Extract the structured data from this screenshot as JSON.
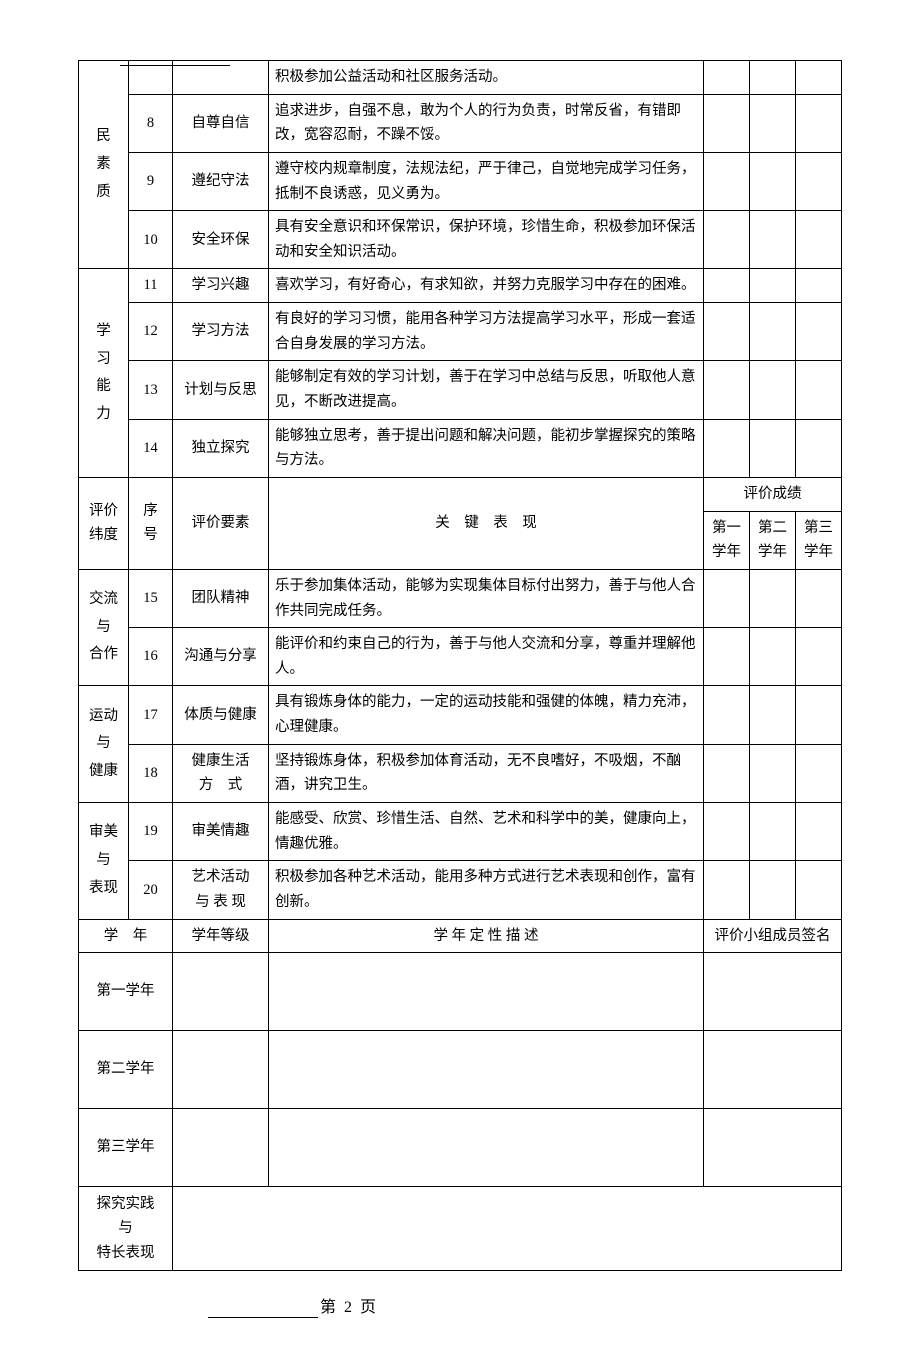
{
  "sections": {
    "s1": {
      "label": "民\n素\n质"
    },
    "s2": {
      "label": "学\n习\n能\n力"
    },
    "s3": {
      "label": "交流\n与\n合作"
    },
    "s4": {
      "label": "运动\n与\n健康"
    },
    "s5": {
      "label": "审美\n与\n表现"
    }
  },
  "rows": {
    "r7": {
      "num": "",
      "elem": "",
      "desc": "积极参加公益活动和社区服务活动。"
    },
    "r8": {
      "num": "8",
      "elem": "自尊自信",
      "desc": "追求进步，自强不息，敢为个人的行为负责，时常反省，有错即改，宽容忍耐，不躁不馁。"
    },
    "r9": {
      "num": "9",
      "elem": "遵纪守法",
      "desc": "遵守校内规章制度，法规法纪，严于律己，自觉地完成学习任务，抵制不良诱惑，见义勇为。"
    },
    "r10": {
      "num": "10",
      "elem": "安全环保",
      "desc": "具有安全意识和环保常识，保护环境，珍惜生命，积极参加环保活动和安全知识活动。"
    },
    "r11": {
      "num": "11",
      "elem": "学习兴趣",
      "desc": "喜欢学习，有好奇心，有求知欲，并努力克服学习中存在的困难。"
    },
    "r12": {
      "num": "12",
      "elem": "学习方法",
      "desc": "有良好的学习习惯，能用各种学习方法提高学习水平，形成一套适合自身发展的学习方法。"
    },
    "r13": {
      "num": "13",
      "elem": "计划与反思",
      "desc": "能够制定有效的学习计划，善于在学习中总结与反思，听取他人意见，不断改进提高。"
    },
    "r14": {
      "num": "14",
      "elem": "独立探究",
      "desc": "能够独立思考，善于提出问题和解决问题，能初步掌握探究的策略与方法。"
    },
    "r15": {
      "num": "15",
      "elem": "团队精神",
      "desc": "乐于参加集体活动，能够为实现集体目标付出努力，善于与他人合作共同完成任务。"
    },
    "r16": {
      "num": "16",
      "elem": "沟通与分享",
      "desc": "能评价和约束自己的行为，善于与他人交流和分享，尊重并理解他人。"
    },
    "r17": {
      "num": "17",
      "elem": "体质与健康",
      "desc": "具有锻炼身体的能力，一定的运动技能和强健的体魄，精力充沛，心理健康。"
    },
    "r18": {
      "num": "18",
      "elem": "健康生活\n方　式",
      "desc": "坚持锻炼身体，积极参加体育活动，无不良嗜好，不吸烟，不酗酒，讲究卫生。"
    },
    "r19": {
      "num": "19",
      "elem": "审美情趣",
      "desc": "能感受、欣赏、珍惜生活、自然、艺术和科学中的美，健康向上，情趣优雅。"
    },
    "r20": {
      "num": "20",
      "elem": "艺术活动\n与 表 现",
      "desc": "积极参加各种艺术活动，能用多种方式进行艺术表现和创作，富有创新。"
    }
  },
  "mid_header": {
    "dim": "评价\n纬度",
    "num": "序\n号",
    "elem": "评价要素",
    "desc": "关　键　表　现",
    "score": "评价成绩",
    "y1": "第一\n学年",
    "y2": "第二\n学年",
    "y3": "第三\n学年"
  },
  "lower_header": {
    "year": "学　年",
    "grade": "学年等级",
    "desc": "学 年 定 性 描 述",
    "sign": "评价小组成员签名"
  },
  "years": {
    "y1": "第一学年",
    "y2": "第二学年",
    "y3": "第三学年",
    "practice": "探究实践\n与\n特长表现"
  },
  "footer": {
    "page": "第 2 页"
  }
}
